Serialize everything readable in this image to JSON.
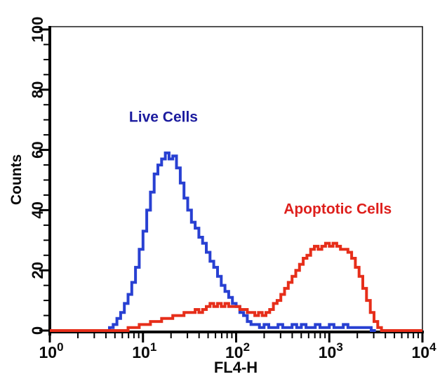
{
  "chart_data": {
    "type": "line",
    "chart_kind": "flow-cytometry-histogram",
    "title": "",
    "xlabel": "FL4-H",
    "ylabel": "Counts",
    "x_scale": "log10",
    "x_decade_range": [
      0,
      4
    ],
    "x_tick_base": "10",
    "x_tick_exponents": [
      "0",
      "1",
      "2",
      "3",
      "4"
    ],
    "ylim": [
      0,
      100
    ],
    "y_major_ticks": [
      0,
      20,
      40,
      60,
      80,
      100
    ],
    "y_minor_step": 5,
    "grid": "off",
    "legend_position": "none-inline-annotations",
    "background_color": "#ffffff",
    "axis_color": "#000000",
    "frame_color": "#1a1a1a",
    "series": [
      {
        "name": "Live Cells",
        "curve_color": "#2840d2",
        "label_color": "#1b1b9e",
        "label_anchor": {
          "x_log10": 1.22,
          "counts": 71
        },
        "peak": {
          "x_log10": 1.24,
          "counts": 59
        },
        "points_log10x_counts": [
          [
            0,
            0
          ],
          [
            0.55,
            0
          ],
          [
            0.6,
            0
          ],
          [
            0.64,
            1
          ],
          [
            0.68,
            2
          ],
          [
            0.72,
            4
          ],
          [
            0.76,
            6
          ],
          [
            0.8,
            9
          ],
          [
            0.84,
            12
          ],
          [
            0.88,
            16
          ],
          [
            0.92,
            21
          ],
          [
            0.96,
            27
          ],
          [
            1.0,
            33
          ],
          [
            1.04,
            40
          ],
          [
            1.08,
            46
          ],
          [
            1.12,
            52
          ],
          [
            1.16,
            55
          ],
          [
            1.2,
            57
          ],
          [
            1.24,
            59
          ],
          [
            1.28,
            57
          ],
          [
            1.32,
            58
          ],
          [
            1.36,
            54
          ],
          [
            1.4,
            49
          ],
          [
            1.44,
            44
          ],
          [
            1.48,
            40
          ],
          [
            1.52,
            36
          ],
          [
            1.56,
            34
          ],
          [
            1.6,
            31
          ],
          [
            1.64,
            29
          ],
          [
            1.68,
            26
          ],
          [
            1.72,
            23
          ],
          [
            1.76,
            21
          ],
          [
            1.8,
            18
          ],
          [
            1.84,
            15
          ],
          [
            1.88,
            13
          ],
          [
            1.92,
            11
          ],
          [
            1.96,
            9
          ],
          [
            2.0,
            8
          ],
          [
            2.04,
            6
          ],
          [
            2.08,
            5
          ],
          [
            2.12,
            3
          ],
          [
            2.16,
            2
          ],
          [
            2.2,
            2
          ],
          [
            2.25,
            1
          ],
          [
            2.3,
            2
          ],
          [
            2.35,
            1
          ],
          [
            2.4,
            1
          ],
          [
            2.45,
            2
          ],
          [
            2.5,
            1
          ],
          [
            2.55,
            1
          ],
          [
            2.6,
            2
          ],
          [
            2.65,
            1
          ],
          [
            2.7,
            2
          ],
          [
            2.75,
            1
          ],
          [
            2.8,
            1
          ],
          [
            2.85,
            2
          ],
          [
            2.9,
            1
          ],
          [
            2.95,
            1
          ],
          [
            3.0,
            2
          ],
          [
            3.05,
            1
          ],
          [
            3.1,
            1
          ],
          [
            3.15,
            2
          ],
          [
            3.2,
            1
          ],
          [
            3.25,
            1
          ],
          [
            3.3,
            1
          ],
          [
            3.35,
            1
          ],
          [
            3.4,
            1
          ],
          [
            3.45,
            0
          ],
          [
            3.5,
            0
          ]
        ]
      },
      {
        "name": "Apoptotic Cells",
        "curve_color": "#e62e1a",
        "label_color": "#de1f1c",
        "label_anchor": {
          "x_log10": 3.09,
          "counts": 40.5
        },
        "peak": {
          "x_log10": 3.0,
          "counts": 29
        },
        "points_log10x_counts": [
          [
            0,
            0
          ],
          [
            0.8,
            0
          ],
          [
            0.84,
            1
          ],
          [
            0.92,
            1
          ],
          [
            0.96,
            2
          ],
          [
            1.04,
            2
          ],
          [
            1.08,
            3
          ],
          [
            1.16,
            3
          ],
          [
            1.2,
            4
          ],
          [
            1.28,
            4
          ],
          [
            1.32,
            5
          ],
          [
            1.4,
            5
          ],
          [
            1.44,
            6
          ],
          [
            1.52,
            6
          ],
          [
            1.56,
            7
          ],
          [
            1.6,
            6
          ],
          [
            1.64,
            7
          ],
          [
            1.68,
            8
          ],
          [
            1.72,
            9
          ],
          [
            1.76,
            8
          ],
          [
            1.8,
            9
          ],
          [
            1.84,
            8
          ],
          [
            1.88,
            9
          ],
          [
            1.92,
            8
          ],
          [
            1.96,
            8
          ],
          [
            2.0,
            8
          ],
          [
            2.04,
            7
          ],
          [
            2.08,
            7
          ],
          [
            2.12,
            6
          ],
          [
            2.16,
            6
          ],
          [
            2.2,
            5
          ],
          [
            2.24,
            6
          ],
          [
            2.28,
            5
          ],
          [
            2.32,
            6
          ],
          [
            2.36,
            7
          ],
          [
            2.4,
            9
          ],
          [
            2.44,
            10
          ],
          [
            2.48,
            12
          ],
          [
            2.52,
            14
          ],
          [
            2.56,
            16
          ],
          [
            2.6,
            18
          ],
          [
            2.64,
            20
          ],
          [
            2.68,
            22
          ],
          [
            2.72,
            24
          ],
          [
            2.76,
            25
          ],
          [
            2.8,
            27
          ],
          [
            2.84,
            28
          ],
          [
            2.88,
            27
          ],
          [
            2.92,
            28
          ],
          [
            2.96,
            29
          ],
          [
            3.0,
            28
          ],
          [
            3.04,
            29
          ],
          [
            3.08,
            28
          ],
          [
            3.12,
            27
          ],
          [
            3.16,
            27
          ],
          [
            3.2,
            26
          ],
          [
            3.24,
            24
          ],
          [
            3.28,
            21
          ],
          [
            3.32,
            18
          ],
          [
            3.36,
            14
          ],
          [
            3.4,
            10
          ],
          [
            3.44,
            6
          ],
          [
            3.48,
            3
          ],
          [
            3.52,
            1
          ],
          [
            3.56,
            0
          ],
          [
            4.0,
            0
          ]
        ]
      }
    ]
  }
}
